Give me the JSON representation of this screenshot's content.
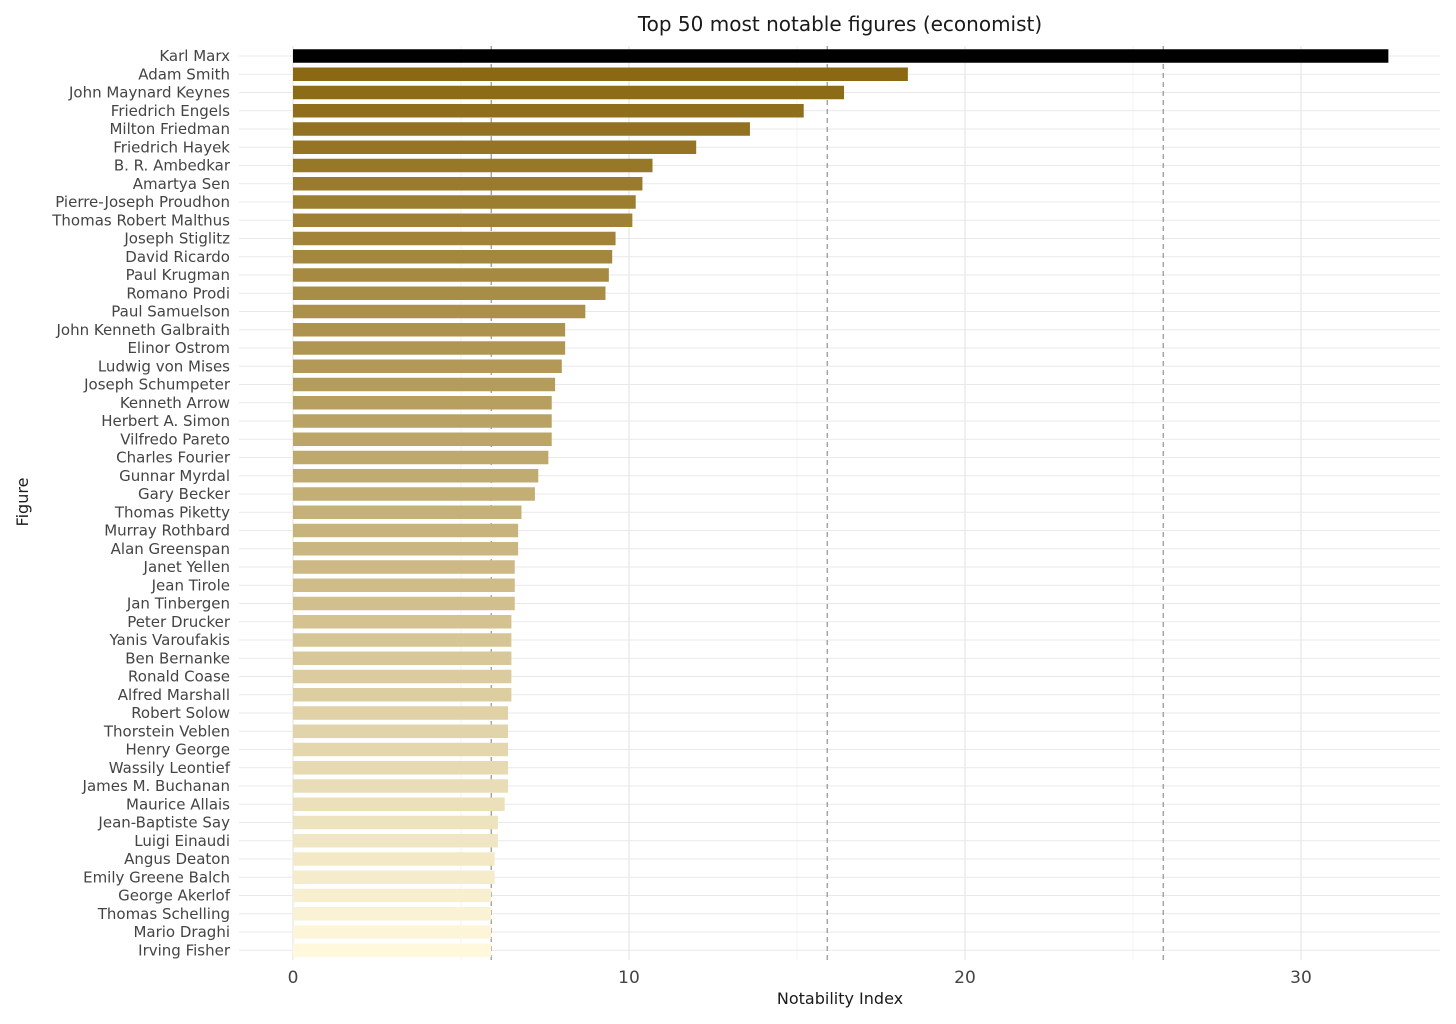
{
  "chart_data": {
    "type": "bar",
    "orientation": "horizontal",
    "title": "Top 50 most notable figures (economist)",
    "xlabel": "Notability Index",
    "ylabel": "Figure",
    "xlim": [
      -1.6,
      34.2
    ],
    "xticks": [
      0,
      10,
      20,
      30
    ],
    "reference_lines": [
      5.9,
      15.9,
      25.9
    ],
    "grid": true,
    "legend": "none",
    "highlight_color": "#000000",
    "gradient_colors": [
      "#8b6914",
      "#fff8dc"
    ],
    "categories": [
      "Karl Marx",
      "Adam Smith",
      "John Maynard Keynes",
      "Friedrich Engels",
      "Milton Friedman",
      "Friedrich Hayek",
      "B. R. Ambedkar",
      "Amartya Sen",
      "Pierre-Joseph Proudhon",
      "Thomas Robert Malthus",
      "Joseph Stiglitz",
      "David Ricardo",
      "Paul Krugman",
      "Romano Prodi",
      "Paul Samuelson",
      "John Kenneth Galbraith",
      "Elinor Ostrom",
      "Ludwig von Mises",
      "Joseph Schumpeter",
      "Kenneth Arrow",
      "Herbert A. Simon",
      "Vilfredo Pareto",
      "Charles Fourier",
      "Gunnar Myrdal",
      "Gary Becker",
      "Thomas Piketty",
      "Murray Rothbard",
      "Alan Greenspan",
      "Janet Yellen",
      "Jean Tirole",
      "Jan Tinbergen",
      "Peter Drucker",
      "Yanis Varoufakis",
      "Ben Bernanke",
      "Ronald Coase",
      "Alfred Marshall",
      "Robert Solow",
      "Thorstein Veblen",
      "Henry George",
      "Wassily Leontief",
      "James M. Buchanan",
      "Maurice Allais",
      "Jean-Baptiste Say",
      "Luigi Einaudi",
      "Angus Deaton",
      "Emily Greene Balch",
      "George Akerlof",
      "Thomas Schelling",
      "Mario Draghi",
      "Irving Fisher"
    ],
    "values": [
      32.6,
      18.3,
      16.4,
      15.2,
      13.6,
      12.0,
      10.7,
      10.4,
      10.2,
      10.1,
      9.6,
      9.5,
      9.4,
      9.3,
      8.7,
      8.1,
      8.1,
      8.0,
      7.8,
      7.7,
      7.7,
      7.7,
      7.6,
      7.3,
      7.2,
      6.8,
      6.7,
      6.7,
      6.6,
      6.6,
      6.6,
      6.5,
      6.5,
      6.5,
      6.5,
      6.5,
      6.4,
      6.4,
      6.4,
      6.4,
      6.4,
      6.3,
      6.1,
      6.1,
      6.0,
      6.0,
      5.9,
      5.9,
      5.9,
      5.9
    ]
  }
}
